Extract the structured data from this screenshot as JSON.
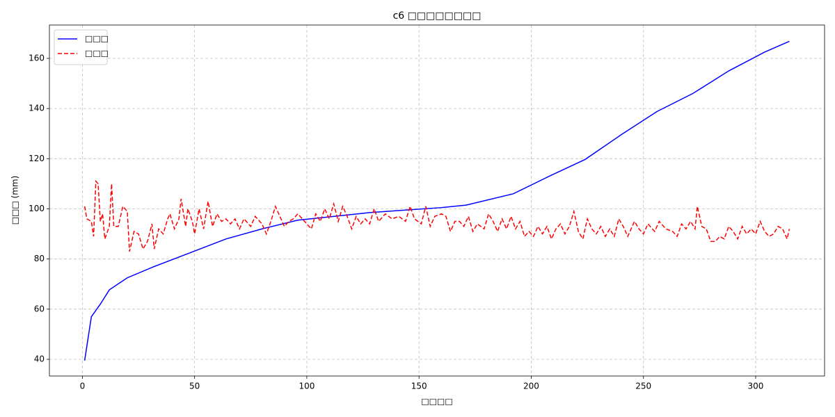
{
  "chart_data": {
    "type": "line",
    "title": "c6 □□□□□□□□",
    "xlabel": "□□□□",
    "ylabel": "□□□ (mm)",
    "xlim": [
      -14.7,
      330.7
    ],
    "ylim": [
      33.35,
      173.3
    ],
    "xticks": [
      0,
      50,
      100,
      150,
      200,
      250,
      300
    ],
    "yticks": [
      40,
      60,
      80,
      100,
      120,
      140,
      160
    ],
    "grid": true,
    "legend": "upper left",
    "series": [
      {
        "name": "□□□",
        "color": "#0000ff",
        "linestyle": "solid",
        "x": [
          1,
          4,
          8,
          12,
          20,
          32,
          48,
          64,
          80,
          96,
          112,
          128,
          144,
          160,
          171,
          192,
          208,
          224,
          240,
          256,
          272,
          288,
          304,
          315
        ],
        "values": [
          39.5,
          57,
          62,
          67.7,
          72.5,
          77,
          82.5,
          88,
          92,
          95.5,
          97,
          98.5,
          99.5,
          100.5,
          101.5,
          106,
          113,
          119.7,
          129.5,
          138.8,
          146,
          155,
          162.5,
          166.8
        ]
      },
      {
        "name": "□□□",
        "color": "#ff0000",
        "linestyle": "dashed",
        "x": [
          1,
          2,
          4,
          5,
          6,
          7,
          8,
          9,
          10,
          12,
          13,
          14,
          16,
          18,
          20,
          21,
          23,
          25,
          27,
          29,
          31,
          32,
          34,
          36,
          38,
          39,
          41,
          43,
          44,
          46,
          47,
          49,
          50,
          52,
          54,
          56,
          58,
          60,
          62,
          64,
          66,
          68,
          70,
          72,
          75,
          77,
          80,
          82,
          84,
          86,
          88,
          90,
          92,
          94,
          96,
          98,
          100,
          102,
          104,
          106,
          108,
          110,
          112,
          114,
          116,
          118,
          120,
          122,
          124,
          126,
          128,
          130,
          132,
          135,
          138,
          141,
          144,
          146,
          148,
          151,
          153,
          155,
          157,
          160,
          162,
          164,
          166,
          168,
          170,
          172,
          174,
          176,
          179,
          181,
          183,
          185,
          187,
          189,
          191,
          193,
          195,
          197,
          199,
          201,
          203,
          205,
          207,
          209,
          211,
          213,
          215,
          217,
          219,
          221,
          223,
          225,
          227,
          229,
          231,
          233,
          235,
          237,
          239,
          241,
          243,
          246,
          248,
          250,
          252,
          255,
          257,
          260,
          263,
          265,
          267,
          269,
          271,
          273,
          274,
          276,
          278,
          280,
          282,
          284,
          286,
          288,
          290,
          292,
          294,
          296,
          298,
          300,
          302,
          304,
          306,
          308,
          310,
          312,
          314,
          315
        ],
        "values": [
          101,
          96,
          95,
          89,
          111,
          110,
          95,
          98,
          88,
          93,
          110,
          93,
          93,
          101,
          99,
          83,
          91,
          90,
          84,
          87,
          94,
          84,
          92,
          90,
          96,
          98,
          92,
          96,
          104,
          93,
          100,
          95,
          90,
          100,
          92,
          103,
          93,
          98,
          95,
          96,
          94,
          96,
          92,
          96,
          93,
          97,
          94,
          90,
          95,
          101,
          97,
          93,
          95,
          96,
          98,
          96,
          94,
          92,
          98,
          95,
          100,
          96,
          102,
          95,
          101,
          97,
          92,
          97,
          94,
          96,
          94,
          100,
          95,
          98,
          96,
          97,
          95,
          101,
          96,
          94,
          101,
          93,
          97,
          98,
          97,
          91,
          95,
          95,
          93,
          97,
          91,
          94,
          92,
          98,
          95,
          91,
          96,
          92,
          97,
          92,
          95,
          89,
          91,
          89,
          93,
          90,
          93,
          88,
          92,
          94,
          90,
          93,
          99,
          91,
          88,
          96,
          92,
          90,
          93,
          89,
          92,
          89,
          96,
          93,
          89,
          95,
          92,
          90,
          94,
          91,
          95,
          92,
          91,
          89,
          94,
          92,
          95,
          92,
          101,
          93,
          92,
          87,
          87,
          89,
          88,
          93,
          91,
          88,
          93,
          90,
          92,
          90,
          95,
          91,
          89,
          90,
          93,
          92,
          88,
          92
        ]
      }
    ]
  }
}
